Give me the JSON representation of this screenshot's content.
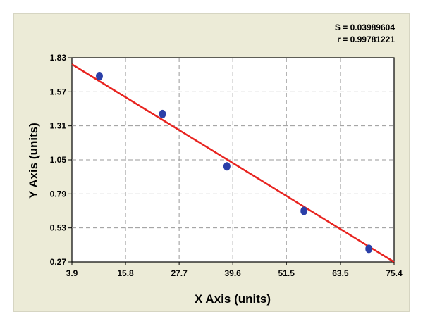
{
  "stats": {
    "s_text": "S = 0.03989604",
    "r_text": "r = 0.99781221"
  },
  "chart_data": {
    "type": "scatter",
    "title": "",
    "xlabel": "X Axis (units)",
    "ylabel": "Y Axis (units)",
    "xlim": [
      3.9,
      75.4
    ],
    "ylim": [
      0.27,
      1.83
    ],
    "xticks": [
      "3.9",
      "15.8",
      "27.7",
      "39.6",
      "51.5",
      "63.5",
      "75.4"
    ],
    "yticks": [
      "0.27",
      "0.53",
      "0.79",
      "1.05",
      "1.31",
      "1.57",
      "1.83"
    ],
    "grid": true,
    "series": [
      {
        "type": "scatter",
        "x": [
          10.0,
          24.0,
          38.3,
          55.4,
          69.8
        ],
        "y": [
          1.69,
          1.4,
          1.0,
          0.66,
          0.37
        ],
        "color": "#2b3fa8"
      },
      {
        "type": "line",
        "x": [
          3.9,
          75.4
        ],
        "y": [
          1.78,
          0.27
        ],
        "color": "#e8231f"
      }
    ]
  }
}
